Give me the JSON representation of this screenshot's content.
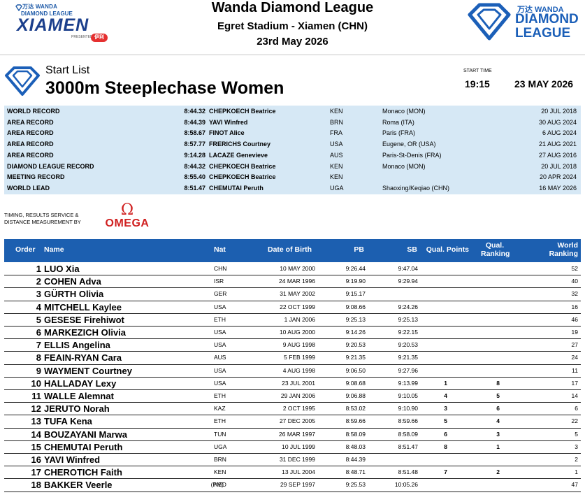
{
  "header": {
    "xiamen_logo": {
      "top": "万达 WANDA",
      "mid": "DIAMOND LEAGUE",
      "main": "XIAMEN",
      "presented": "PRESENTED BY",
      "sponsor": "伊利"
    },
    "meeting_name": "Wanda Diamond League",
    "venue": "Egret Stadium - Xiamen (CHN)",
    "date": "23rd May 2026",
    "dl_logo": {
      "top": "万达 WANDA",
      "line1": "DIAMOND",
      "line2": "LEAGUE"
    },
    "brand_color": "#1b5fb8"
  },
  "event": {
    "subtitle": "Start List",
    "title": "3000m Steeplechase Women",
    "start_time_label": "START TIME",
    "start_time": "19:15",
    "start_date": "23 MAY 2026"
  },
  "records": [
    {
      "label": "WORLD RECORD",
      "perf": "8:44.32",
      "name": "CHEPKOECH Beatrice",
      "nat": "KEN",
      "venue": "Monaco (MON)",
      "date": "20 JUL 2018"
    },
    {
      "label": "AREA RECORD",
      "perf": "8:44.39",
      "name": "YAVI Winfred",
      "nat": "BRN",
      "venue": "Roma (ITA)",
      "date": "30 AUG 2024"
    },
    {
      "label": "AREA RECORD",
      "perf": "8:58.67",
      "name": "FINOT Alice",
      "nat": "FRA",
      "venue": "Paris (FRA)",
      "date": "6 AUG 2024"
    },
    {
      "label": "AREA RECORD",
      "perf": "8:57.77",
      "name": "FRERICHS Courtney",
      "nat": "USA",
      "venue": "Eugene, OR (USA)",
      "date": "21 AUG 2021"
    },
    {
      "label": "AREA RECORD",
      "perf": "9:14.28",
      "name": "LACAZE Genevieve",
      "nat": "AUS",
      "venue": "Paris-St-Denis (FRA)",
      "date": "27 AUG 2016"
    },
    {
      "label": "DIAMOND LEAGUE RECORD",
      "perf": "8:44.32",
      "name": "CHEPKOECH Beatrice",
      "nat": "KEN",
      "venue": "Monaco (MON)",
      "date": "20 JUL 2018"
    },
    {
      "label": "MEETING RECORD",
      "perf": "8:55.40",
      "name": "CHEPKOECH Beatrice",
      "nat": "KEN",
      "venue": "",
      "date": "20 APR 2024"
    },
    {
      "label": "WORLD LEAD",
      "perf": "8:51.47",
      "name": "CHEMUTAI Peruth",
      "nat": "UGA",
      "venue": "Shaoxing/Keqiao (CHN)",
      "date": "16 MAY 2026"
    }
  ],
  "timing": {
    "line1": "TIMING, RESULTS SERVICE &",
    "line2": "DISTANCE MEASUREMENT BY",
    "logo_symbol": "Ω",
    "logo_text": "OMEGA"
  },
  "table": {
    "headers": {
      "order": "Order",
      "name": "Name",
      "nat": "Nat",
      "dob": "Date of Birth",
      "pb": "PB",
      "sb": "SB",
      "qual_points": "Qual. Points",
      "qual_ranking_1": "Qual.",
      "qual_ranking_2": "Ranking",
      "world_ranking_1": "World",
      "world_ranking_2": "Ranking"
    },
    "header_color": "#1c5fb0",
    "rows": [
      {
        "order": "1",
        "name": "LUO Xia",
        "pm": "",
        "nat": "CHN",
        "dob": "10 MAY 2000",
        "pb": "9:26.44",
        "sb": "9:47.04",
        "qp": "",
        "qr": "",
        "wr": "52"
      },
      {
        "order": "2",
        "name": "COHEN Adva",
        "pm": "",
        "nat": "ISR",
        "dob": "24 MAR 1996",
        "pb": "9:19.90",
        "sb": "9:29.94",
        "qp": "",
        "qr": "",
        "wr": "40"
      },
      {
        "order": "3",
        "name": "GÜRTH Olivia",
        "pm": "",
        "nat": "GER",
        "dob": "31 MAY 2002",
        "pb": "9:15.17",
        "sb": "",
        "qp": "",
        "qr": "",
        "wr": "32"
      },
      {
        "order": "4",
        "name": "MITCHELL Kaylee",
        "pm": "",
        "nat": "USA",
        "dob": "22 OCT 1999",
        "pb": "9:08.66",
        "sb": "9:24.26",
        "qp": "",
        "qr": "",
        "wr": "16"
      },
      {
        "order": "5",
        "name": "GESESE Firehiwot",
        "pm": "",
        "nat": "ETH",
        "dob": "1 JAN 2006",
        "pb": "9:25.13",
        "sb": "9:25.13",
        "qp": "",
        "qr": "",
        "wr": "46"
      },
      {
        "order": "6",
        "name": "MARKEZICH Olivia",
        "pm": "",
        "nat": "USA",
        "dob": "10 AUG 2000",
        "pb": "9:14.26",
        "sb": "9:22.15",
        "qp": "",
        "qr": "",
        "wr": "19"
      },
      {
        "order": "7",
        "name": "ELLIS Angelina",
        "pm": "",
        "nat": "USA",
        "dob": "9 AUG 1998",
        "pb": "9:20.53",
        "sb": "9:20.53",
        "qp": "",
        "qr": "",
        "wr": "27"
      },
      {
        "order": "8",
        "name": "FEAIN-RYAN Cara",
        "pm": "",
        "nat": "AUS",
        "dob": "5 FEB 1999",
        "pb": "9:21.35",
        "sb": "9:21.35",
        "qp": "",
        "qr": "",
        "wr": "24"
      },
      {
        "order": "9",
        "name": "WAYMENT Courtney",
        "pm": "",
        "nat": "USA",
        "dob": "4 AUG 1998",
        "pb": "9:06.50",
        "sb": "9:27.96",
        "qp": "",
        "qr": "",
        "wr": "11"
      },
      {
        "order": "10",
        "name": "HALLADAY Lexy",
        "pm": "",
        "nat": "USA",
        "dob": "23 JUL 2001",
        "pb": "9:08.68",
        "sb": "9:13.99",
        "qp": "1",
        "qr": "8",
        "wr": "17"
      },
      {
        "order": "11",
        "name": "WALLE Alemnat",
        "pm": "",
        "nat": "ETH",
        "dob": "29 JAN 2006",
        "pb": "9:06.88",
        "sb": "9:10.05",
        "qp": "4",
        "qr": "5",
        "wr": "14"
      },
      {
        "order": "12",
        "name": "JERUTO Norah",
        "pm": "",
        "nat": "KAZ",
        "dob": "2 OCT 1995",
        "pb": "8:53.02",
        "sb": "9:10.90",
        "qp": "3",
        "qr": "6",
        "wr": "6"
      },
      {
        "order": "13",
        "name": "TUFA Kena",
        "pm": "",
        "nat": "ETH",
        "dob": "27 DEC 2005",
        "pb": "8:59.66",
        "sb": "8:59.66",
        "qp": "5",
        "qr": "4",
        "wr": "22"
      },
      {
        "order": "14",
        "name": "BOUZAYANI Marwa",
        "pm": "",
        "nat": "TUN",
        "dob": "26 MAR 1997",
        "pb": "8:58.09",
        "sb": "8:58.09",
        "qp": "6",
        "qr": "3",
        "wr": "5"
      },
      {
        "order": "15",
        "name": "CHEMUTAI Peruth",
        "pm": "",
        "nat": "UGA",
        "dob": "10 JUL 1999",
        "pb": "8:48.03",
        "sb": "8:51.47",
        "qp": "8",
        "qr": "1",
        "wr": "3"
      },
      {
        "order": "16",
        "name": "YAVI Winfred",
        "pm": "",
        "nat": "BRN",
        "dob": "31 DEC 1999",
        "pb": "8:44.39",
        "sb": "",
        "qp": "",
        "qr": "",
        "wr": "2"
      },
      {
        "order": "17",
        "name": "CHEROTICH Faith",
        "pm": "",
        "nat": "KEN",
        "dob": "13 JUL 2004",
        "pb": "8:48.71",
        "sb": "8:51.48",
        "qp": "7",
        "qr": "2",
        "wr": "1"
      },
      {
        "order": "18",
        "name": "BAKKER Veerle",
        "pm": "(PM)",
        "nat": "NED",
        "dob": "29 SEP 1997",
        "pb": "9:25.53",
        "sb": "10:05.26",
        "qp": "",
        "qr": "",
        "wr": "47"
      }
    ]
  }
}
